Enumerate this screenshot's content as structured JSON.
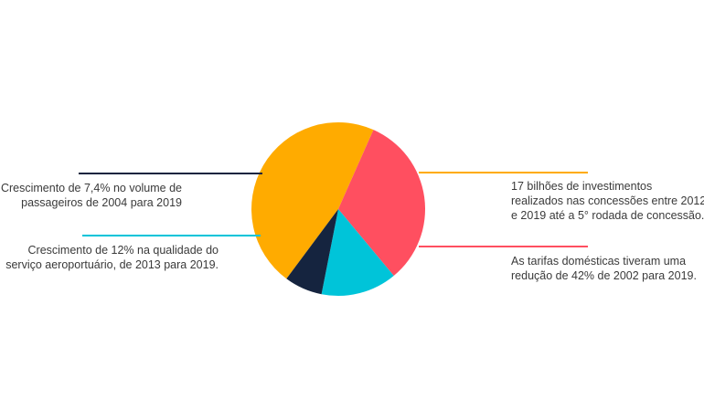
{
  "chart_data": {
    "type": "pie",
    "title": "",
    "slices": [
      {
        "value": 46,
        "color": "#FFAB00",
        "annotation": [
          "17 bilhões de investimentos",
          "realizados nas concessões entre 2012",
          "e 2019 até a 5° rodada de concessão."
        ]
      },
      {
        "value": 32,
        "color": "#FF4F60",
        "annotation": [
          "As tarifas domésticas tiveram uma",
          "redução de 42% de 2002 para 2019."
        ]
      },
      {
        "value": 14,
        "color": "#00C4D9",
        "annotation": [
          "Crescimento de 12% na qualidade do",
          "serviço aeroportuário, de 2013 para 2019."
        ]
      },
      {
        "value": 7,
        "color": "#15243F",
        "annotation": [
          "Crescimento de 7,4% no volume de",
          "passageiros de 2004 para 2019"
        ]
      }
    ]
  }
}
